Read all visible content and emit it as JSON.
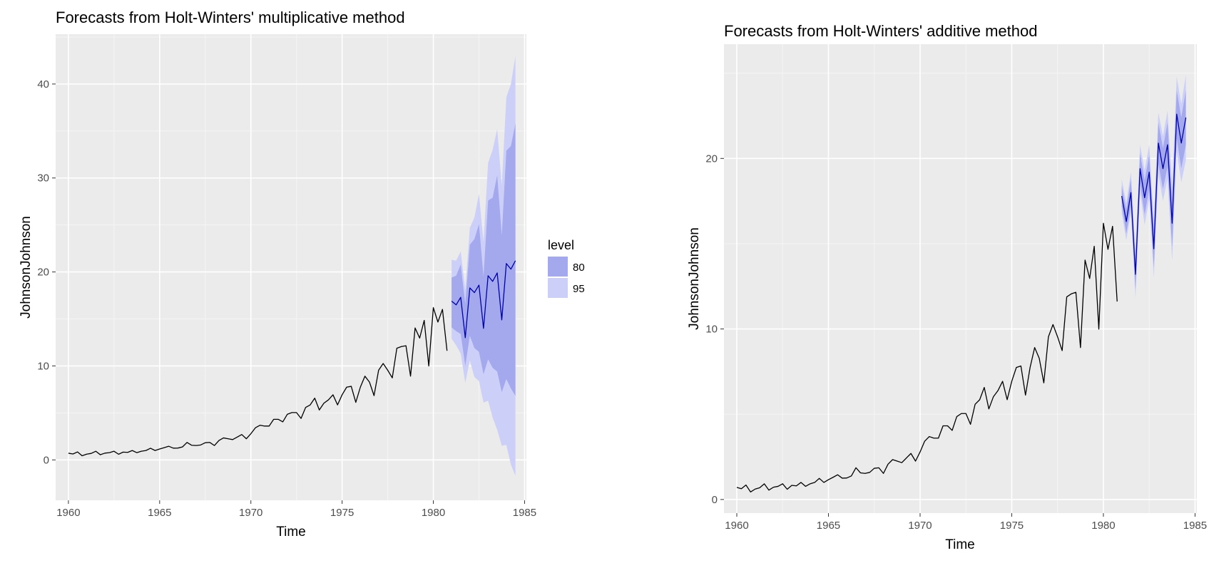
{
  "colors": {
    "panel_bg": "#EBEBEB",
    "grid_major": "#FFFFFF",
    "grid_minor": "#F5F5F5",
    "history_line": "#000000",
    "forecast_line": "#0000AA",
    "pi80": "#A4A9EE",
    "pi95": "#CCD0F8",
    "tick": "#333333"
  },
  "legend": {
    "title": "level",
    "items": [
      {
        "label": "80",
        "color_key": "pi80"
      },
      {
        "label": "95",
        "color_key": "pi95"
      }
    ]
  },
  "chart_data": [
    {
      "id": "multiplicative",
      "type": "line",
      "title": "Forecasts from Holt-Winters' multiplicative method",
      "xlabel": "Time",
      "ylabel": "JohnsonJohnson",
      "xlim": [
        1959.3,
        1985.1
      ],
      "ylim": [
        -4.3,
        45.3
      ],
      "x_ticks": [
        1960,
        1965,
        1970,
        1975,
        1980,
        1985
      ],
      "y_ticks": [
        0,
        10,
        20,
        30,
        40
      ],
      "history": {
        "start": 1960,
        "frequency": 4,
        "values": [
          0.71,
          0.63,
          0.85,
          0.44,
          0.61,
          0.69,
          0.92,
          0.55,
          0.72,
          0.77,
          0.92,
          0.6,
          0.83,
          0.8,
          1.0,
          0.77,
          0.92,
          1.0,
          1.24,
          1.0,
          1.16,
          1.3,
          1.45,
          1.25,
          1.26,
          1.38,
          1.86,
          1.56,
          1.53,
          1.59,
          1.83,
          1.86,
          1.53,
          2.07,
          2.34,
          2.25,
          2.16,
          2.43,
          2.7,
          2.25,
          2.79,
          3.42,
          3.69,
          3.6,
          3.6,
          4.32,
          4.32,
          4.05,
          4.86,
          5.04,
          5.04,
          4.41,
          5.58,
          5.85,
          6.57,
          5.31,
          6.03,
          6.39,
          6.93,
          5.85,
          6.93,
          7.74,
          7.83,
          6.12,
          7.74,
          8.91,
          8.28,
          6.84,
          9.54,
          10.26,
          9.54,
          8.73,
          11.88,
          12.06,
          12.15,
          8.91,
          14.04,
          12.96,
          14.85,
          9.99,
          16.2,
          14.67,
          16.02,
          11.61
        ]
      },
      "forecast": {
        "start": 1981,
        "frequency": 4,
        "mean": [
          16.9,
          16.5,
          17.3,
          13.0,
          18.3,
          17.8,
          18.6,
          14.0,
          19.6,
          19.0,
          19.9,
          14.9,
          20.9,
          20.3,
          21.2
        ],
        "lower80": [
          14.1,
          13.7,
          13.4,
          10.0,
          13.2,
          11.9,
          11.5,
          9.1,
          10.7,
          9.8,
          9.4,
          7.2,
          8.6,
          7.6,
          6.8
        ],
        "upper80": [
          19.4,
          19.6,
          20.8,
          16.6,
          22.9,
          23.5,
          25.1,
          19.5,
          27.6,
          27.9,
          30.3,
          23.9,
          32.9,
          33.4,
          35.8
        ],
        "lower95": [
          12.9,
          12.2,
          11.3,
          8.2,
          10.6,
          8.8,
          8.4,
          6.1,
          6.3,
          4.5,
          3.2,
          1.5,
          1.6,
          -0.5,
          -1.7
        ],
        "upper95": [
          21.3,
          21.2,
          22.2,
          18.1,
          24.7,
          25.8,
          28.3,
          23.2,
          31.6,
          33.0,
          35.2,
          29.2,
          38.6,
          40.0,
          43.0
        ]
      }
    },
    {
      "id": "additive",
      "type": "line",
      "title": "Forecasts from Holt-Winters' additive method",
      "xlabel": "Time",
      "ylabel": "JohnsonJohnson",
      "xlim": [
        1959.3,
        1985.1
      ],
      "ylim": [
        -0.8,
        26.7
      ],
      "x_ticks": [
        1960,
        1965,
        1970,
        1975,
        1980,
        1985
      ],
      "y_ticks": [
        0,
        10,
        20
      ],
      "history": {
        "start": 1960,
        "frequency": 4,
        "values": [
          0.71,
          0.63,
          0.85,
          0.44,
          0.61,
          0.69,
          0.92,
          0.55,
          0.72,
          0.77,
          0.92,
          0.6,
          0.83,
          0.8,
          1.0,
          0.77,
          0.92,
          1.0,
          1.24,
          1.0,
          1.16,
          1.3,
          1.45,
          1.25,
          1.26,
          1.38,
          1.86,
          1.56,
          1.53,
          1.59,
          1.83,
          1.86,
          1.53,
          2.07,
          2.34,
          2.25,
          2.16,
          2.43,
          2.7,
          2.25,
          2.79,
          3.42,
          3.69,
          3.6,
          3.6,
          4.32,
          4.32,
          4.05,
          4.86,
          5.04,
          5.04,
          4.41,
          5.58,
          5.85,
          6.57,
          5.31,
          6.03,
          6.39,
          6.93,
          5.85,
          6.93,
          7.74,
          7.83,
          6.12,
          7.74,
          8.91,
          8.28,
          6.84,
          9.54,
          10.26,
          9.54,
          8.73,
          11.88,
          12.06,
          12.15,
          8.91,
          14.04,
          12.96,
          14.85,
          9.99,
          16.2,
          14.67,
          16.02,
          11.61
        ]
      },
      "forecast": {
        "start": 1981,
        "frequency": 4,
        "mean": [
          17.8,
          16.3,
          18.0,
          13.2,
          19.4,
          17.7,
          19.2,
          14.7,
          20.9,
          19.4,
          20.8,
          16.2,
          22.6,
          20.9,
          22.4
        ],
        "lower80": [
          17.2,
          15.6,
          17.2,
          12.3,
          18.5,
          16.7,
          18.2,
          13.6,
          19.7,
          18.2,
          19.5,
          14.8,
          21.2,
          19.4,
          20.8
        ],
        "upper80": [
          18.4,
          17.0,
          18.8,
          14.1,
          20.3,
          18.7,
          20.2,
          15.8,
          22.1,
          20.6,
          22.1,
          17.6,
          24.0,
          22.4,
          24.0
        ],
        "lower95": [
          16.8,
          15.2,
          16.8,
          11.8,
          18.0,
          16.1,
          17.6,
          13.0,
          19.1,
          17.5,
          18.8,
          14.0,
          20.4,
          18.6,
          19.9
        ],
        "upper95": [
          18.8,
          17.4,
          19.2,
          14.6,
          20.8,
          19.3,
          20.8,
          16.4,
          22.7,
          21.3,
          22.8,
          18.4,
          24.8,
          23.2,
          24.9
        ]
      }
    }
  ]
}
